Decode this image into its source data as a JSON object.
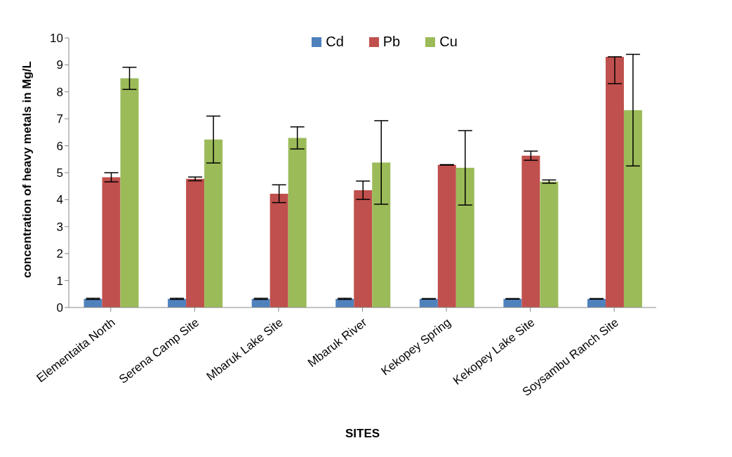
{
  "chart_data": {
    "type": "bar",
    "xlabel": "SITES",
    "ylabel": "concentration of heavy metals in Mg/L",
    "categories": [
      "Elementaita North",
      "Serena Camp Site",
      "Mbaruk Lake Site",
      "Mbaruk River",
      "Kekopey Spring",
      "Kekopey Lake Site",
      "Soysambu Ranch Site"
    ],
    "series": [
      {
        "name": "Cd",
        "color": "#4f81bd",
        "values": [
          0.32,
          0.32,
          0.32,
          0.32,
          0.32,
          0.32,
          0.32
        ],
        "errors": [
          0.02,
          0.02,
          0.02,
          0.02,
          0.01,
          0.01,
          0.01
        ]
      },
      {
        "name": "Pb",
        "color": "#c0504d",
        "values": [
          4.83,
          4.77,
          4.22,
          4.35,
          5.29,
          5.63,
          9.3
        ],
        "errors": [
          0.17,
          0.07,
          0.33,
          0.34,
          0.01,
          0.17,
          [
            8.3,
            9.3
          ]
        ]
      },
      {
        "name": "Cu",
        "color": "#9bbb59",
        "values": [
          8.5,
          6.23,
          6.29,
          5.38,
          5.18,
          4.67,
          7.32
        ],
        "errors": [
          0.41,
          0.87,
          0.41,
          1.55,
          1.38,
          0.06,
          2.07
        ]
      }
    ],
    "ylim": [
      0,
      10
    ],
    "yticks": [
      0,
      1,
      2,
      3,
      4,
      5,
      6,
      7,
      8,
      9,
      10
    ],
    "legend": "top"
  }
}
